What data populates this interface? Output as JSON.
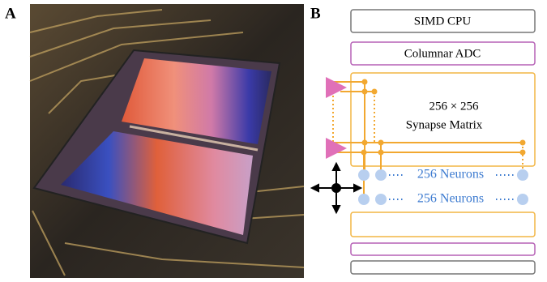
{
  "panels": {
    "a": {
      "label": "A"
    },
    "b": {
      "label": "B"
    }
  },
  "diagram": {
    "cpu": "SIMD CPU",
    "adc": "Columnar ADC",
    "matrix_size": "256 × 256",
    "matrix_label": "Synapse Matrix",
    "neurons": [
      "256 Neurons",
      "256 Neurons"
    ]
  }
}
